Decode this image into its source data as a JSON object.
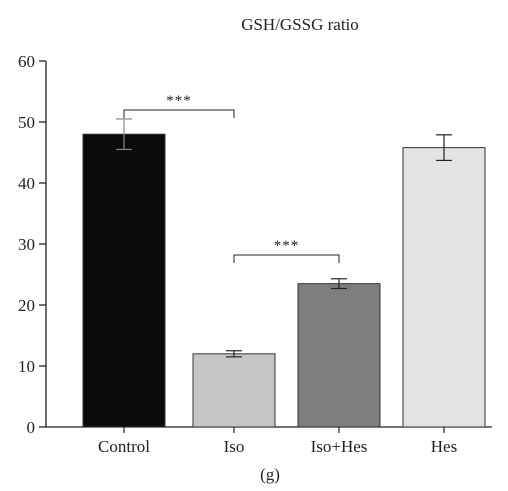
{
  "chart_data": {
    "type": "bar",
    "title": "GSH/GSSG ratio",
    "xlabel": "",
    "ylabel": "",
    "ylim": [
      0,
      60
    ],
    "yticks": [
      0,
      10,
      20,
      30,
      40,
      50,
      60
    ],
    "categories": [
      "Control",
      "Iso",
      "Iso+Hes",
      "Hes"
    ],
    "values": [
      48,
      12,
      23.5,
      45.8
    ],
    "errors": [
      2.5,
      0.5,
      0.8,
      2.1
    ],
    "colors": [
      "#0a0a0a",
      "#c3c6c5",
      "#7d7d7d",
      "#e3e3e3"
    ],
    "grid": false,
    "legend": "none",
    "significance": [
      {
        "from": 0,
        "to": 1,
        "label": "***"
      },
      {
        "from": 1,
        "to": 2,
        "label": "***"
      }
    ]
  },
  "panel_label": "(g)"
}
